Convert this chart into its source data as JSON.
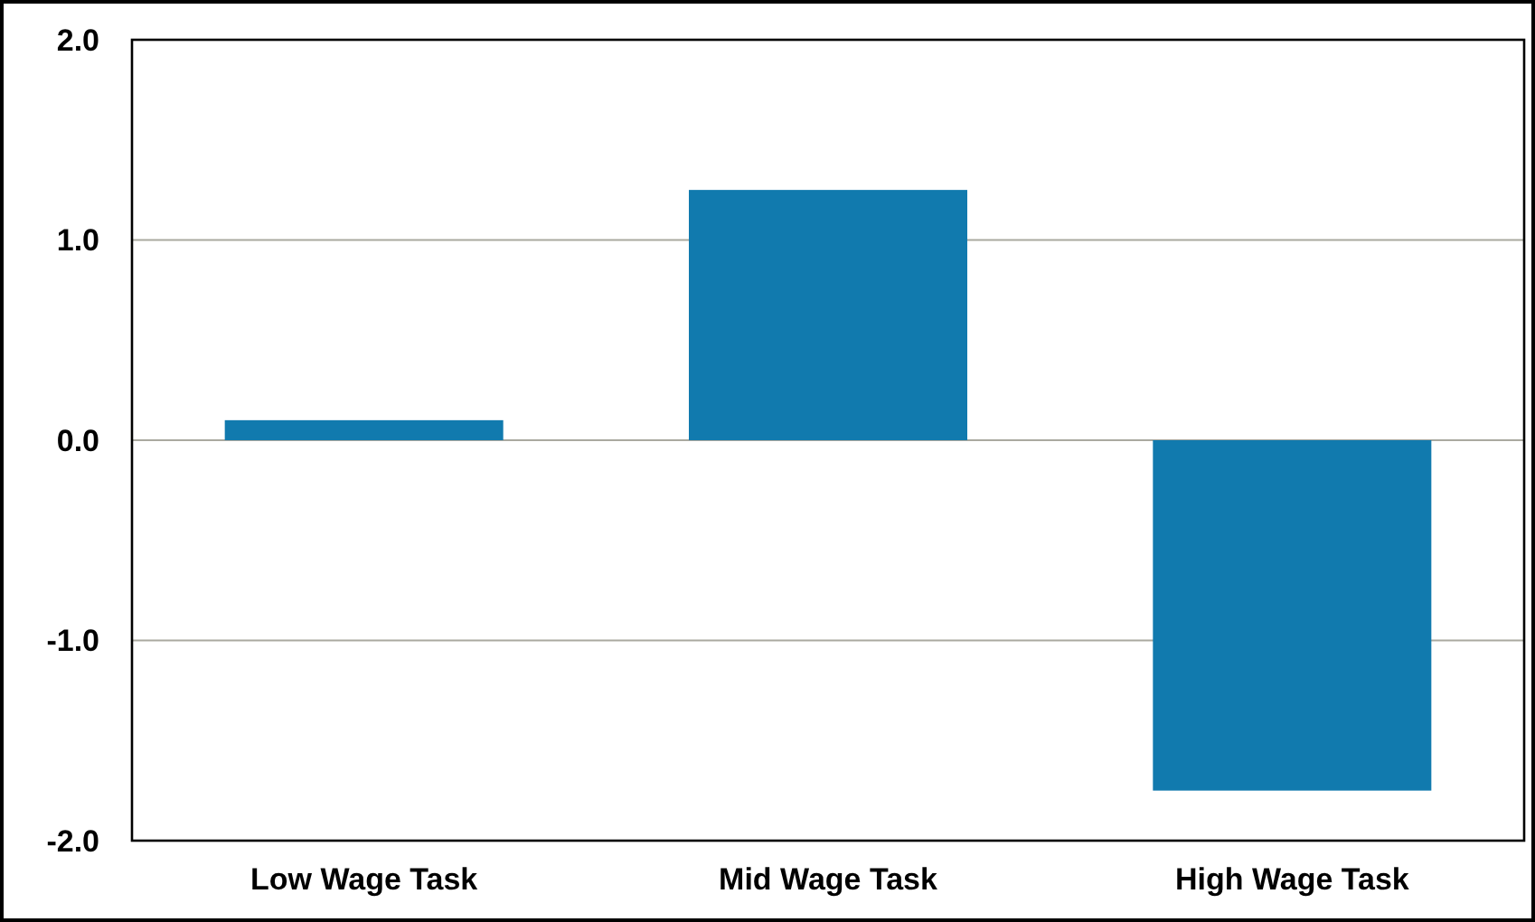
{
  "chart_data": {
    "type": "bar",
    "categories": [
      "Low Wage Task",
      "Mid Wage Task",
      "High Wage Task"
    ],
    "values": [
      0.1,
      1.25,
      -1.75
    ],
    "color": "#117aae",
    "ylim": [
      -2,
      2
    ],
    "yticks": [
      {
        "value": -2,
        "label": "-2.0"
      },
      {
        "value": -1,
        "label": "-1.0"
      },
      {
        "value": 0,
        "label": "0.0"
      },
      {
        "value": 1,
        "label": "1.0"
      },
      {
        "value": 2,
        "label": "2.0"
      }
    ],
    "grid": "y"
  }
}
